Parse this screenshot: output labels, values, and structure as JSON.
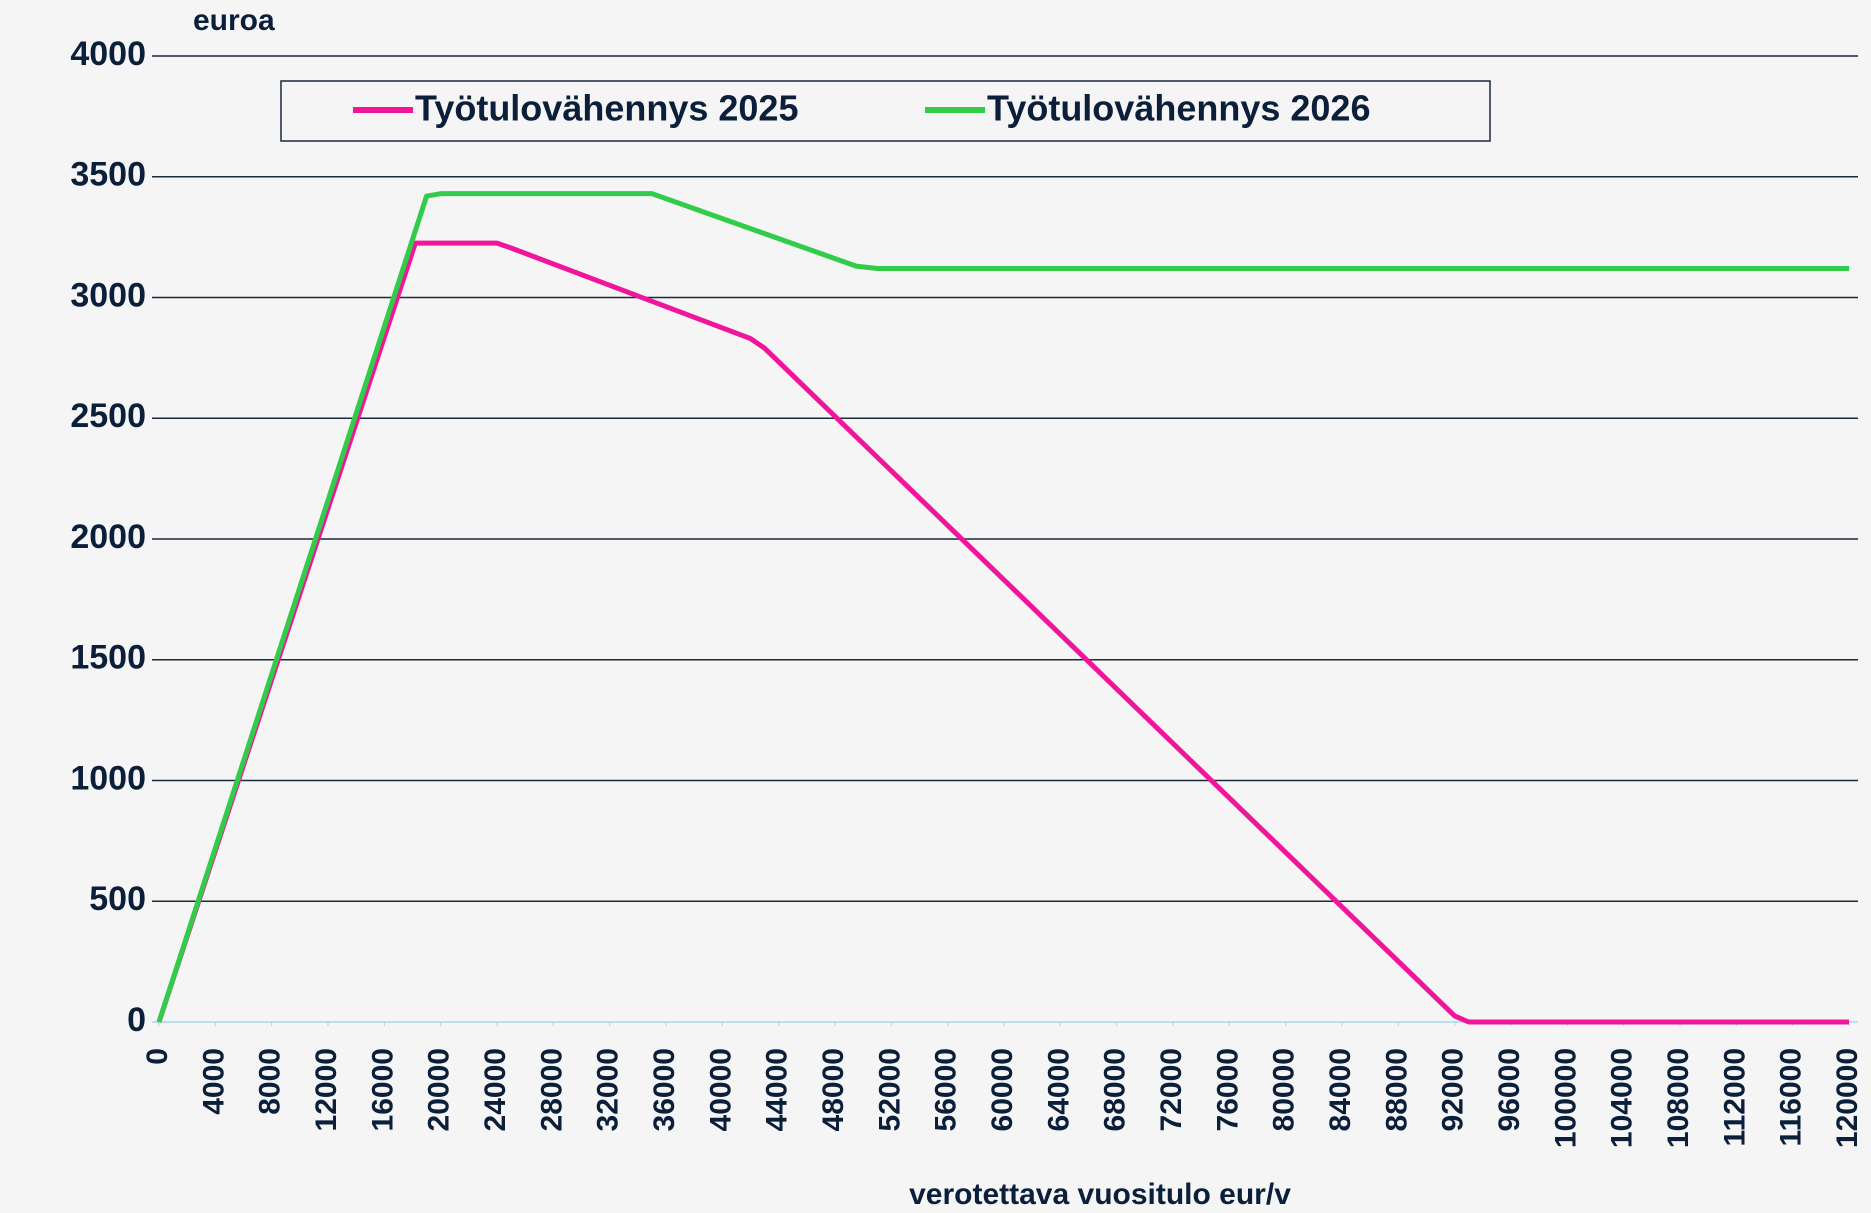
{
  "chart_data": {
    "type": "line",
    "y_label": "euroa",
    "x_label": "verotettava vuositulo eur/v",
    "xlim": [
      0,
      120000
    ],
    "xticks": [
      0,
      4000,
      8000,
      12000,
      16000,
      20000,
      24000,
      28000,
      32000,
      36000,
      40000,
      44000,
      48000,
      52000,
      56000,
      60000,
      64000,
      68000,
      72000,
      76000,
      80000,
      84000,
      88000,
      92000,
      96000,
      100000,
      104000,
      108000,
      112000,
      116000,
      120000
    ],
    "ylim": [
      0,
      4000
    ],
    "yticks": [
      0,
      500,
      1000,
      1500,
      2000,
      2500,
      3000,
      3500,
      4000
    ],
    "grid": true,
    "legend": "top",
    "series": [
      {
        "name": "Työtulovähennys 2025",
        "color": "#f0169c",
        "x": [
          0,
          18200,
          24000,
          25000,
          42000,
          43000,
          92000,
          93000,
          120000
        ],
        "values": [
          0,
          3225,
          3225,
          3205,
          2830,
          2790,
          25,
          0,
          0
        ]
      },
      {
        "name": "Työtulovähennys 2026",
        "color": "#33cc4a",
        "x": [
          0,
          19000,
          20000,
          35000,
          49500,
          51000,
          120000
        ],
        "values": [
          0,
          3420,
          3430,
          3430,
          3130,
          3120,
          3120
        ]
      }
    ]
  }
}
